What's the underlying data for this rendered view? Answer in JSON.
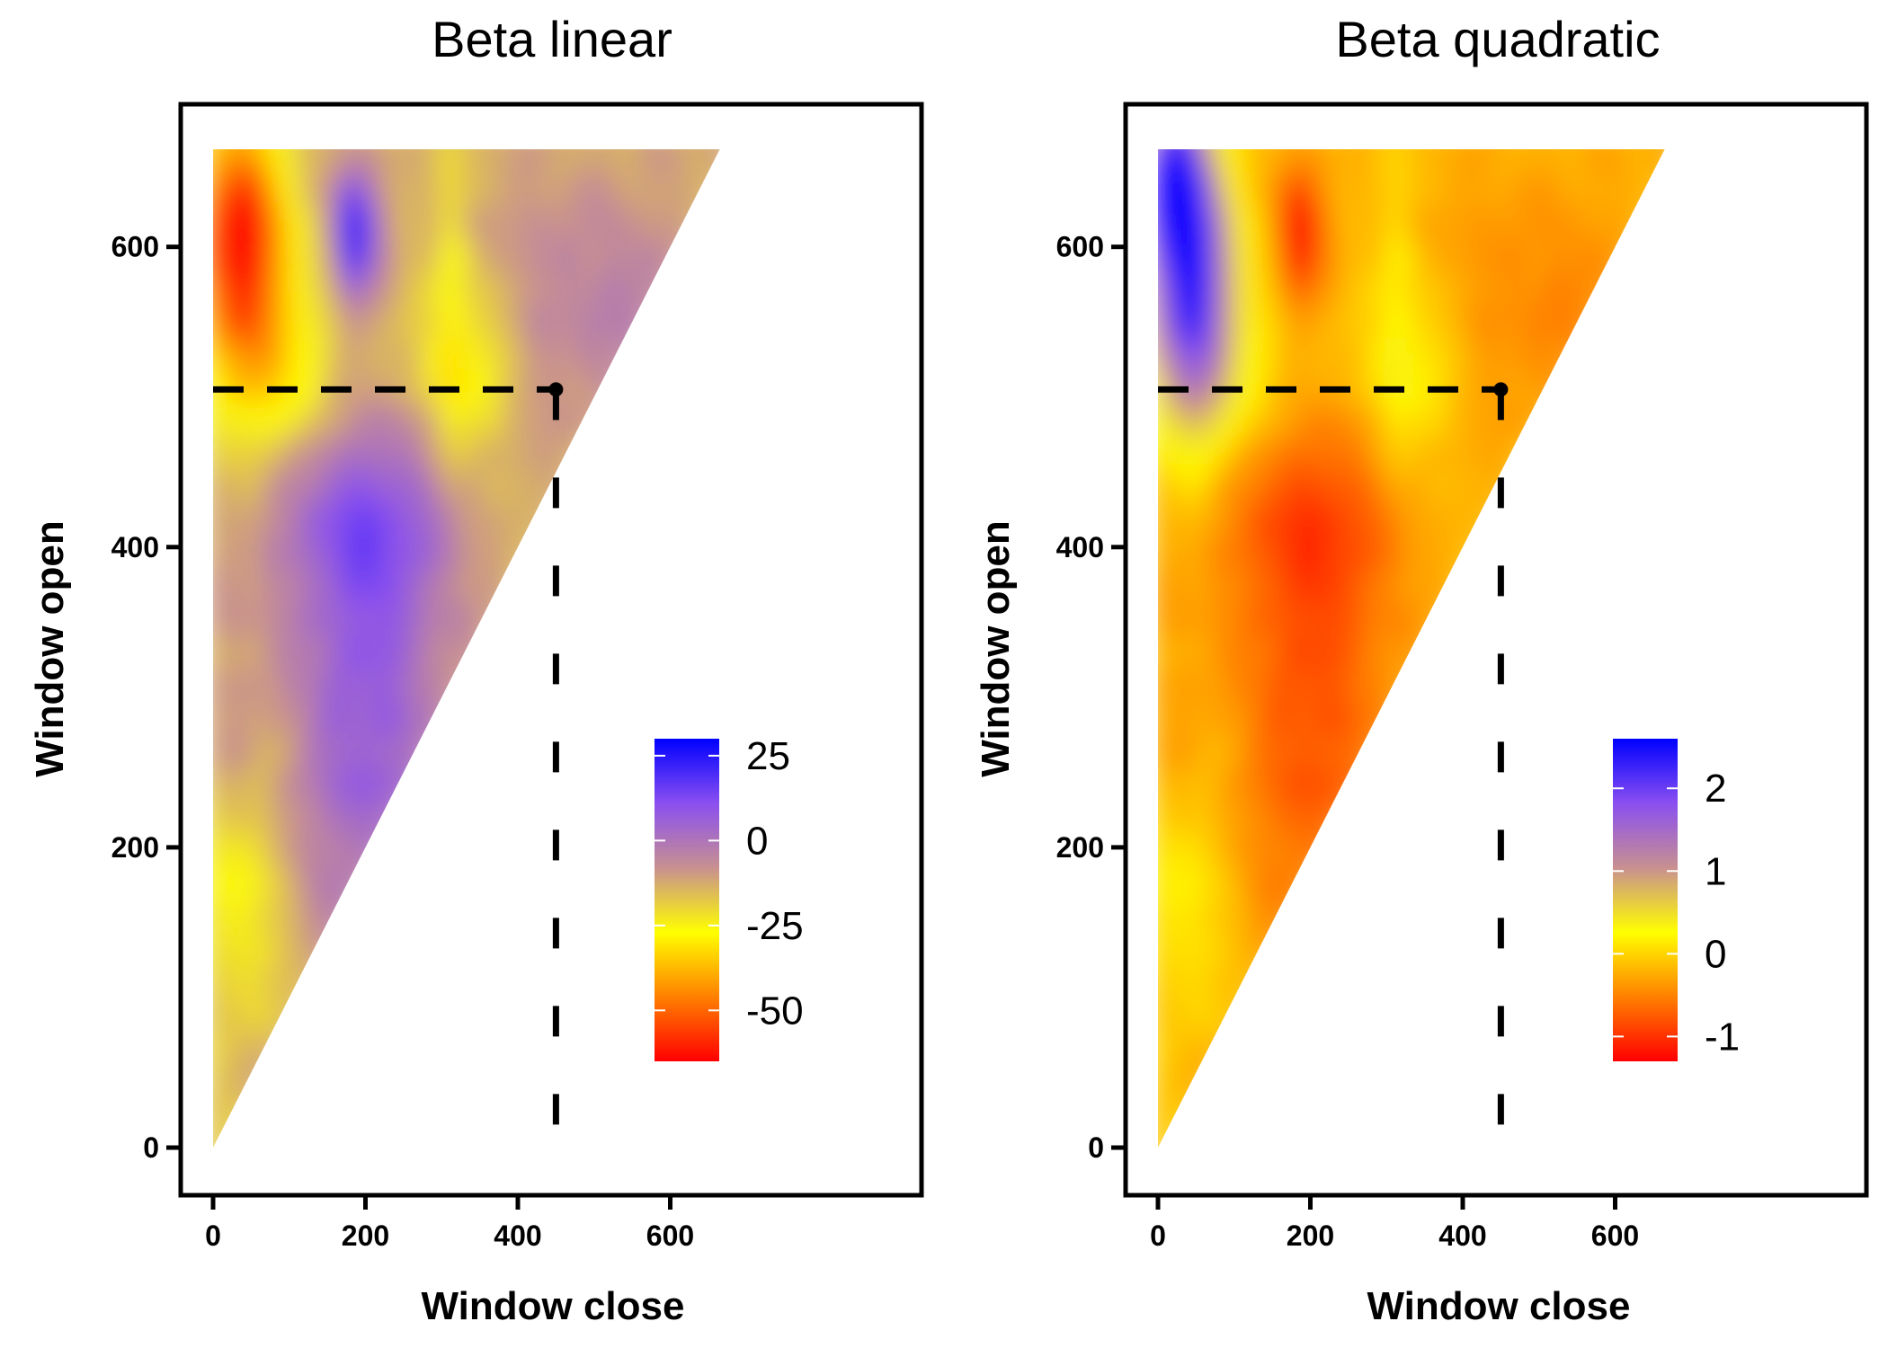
{
  "chart_data": [
    {
      "type": "heatmap",
      "title": "Beta linear",
      "xlabel": "Window close",
      "ylabel": "Window open",
      "xlim": [
        -40,
        690
      ],
      "ylim": [
        -40,
        690
      ],
      "x_ticks": [
        0,
        200,
        400,
        600
      ],
      "y_ticks": [
        0,
        200,
        400,
        600
      ],
      "region": "upper triangle (Window open >= Window close), open from 0 to 665",
      "highlight_point": {
        "x": 450,
        "y": 505
      },
      "legend": {
        "placement": "bottom-right",
        "ticks": [
          "25",
          "0",
          "-25",
          "-50"
        ],
        "tick_values": [
          25,
          0,
          -25,
          -50
        ],
        "range": [
          -65,
          30
        ],
        "colors": [
          "#ff0000",
          "#ff8000",
          "#ffff00",
          "#c89090",
          "#8a4ff0",
          "#0000ff"
        ]
      }
    },
    {
      "type": "heatmap",
      "title": "Beta quadratic",
      "xlabel": "Window close",
      "ylabel": "Window open",
      "xlim": [
        -40,
        690
      ],
      "ylim": [
        -40,
        690
      ],
      "x_ticks": [
        0,
        200,
        400,
        600
      ],
      "y_ticks": [
        0,
        200,
        400,
        600
      ],
      "region": "upper triangle (Window open >= Window close), open from 0 to 665",
      "highlight_point": {
        "x": 450,
        "y": 505
      },
      "legend": {
        "placement": "bottom-right",
        "ticks": [
          "2",
          "1",
          "0",
          "-1"
        ],
        "tick_values": [
          2,
          1,
          0,
          -1
        ],
        "range": [
          -1.3,
          2.6
        ],
        "colors": [
          "#ff0000",
          "#ff8000",
          "#ffff00",
          "#c89090",
          "#8a4ff0",
          "#0000ff"
        ]
      }
    }
  ]
}
